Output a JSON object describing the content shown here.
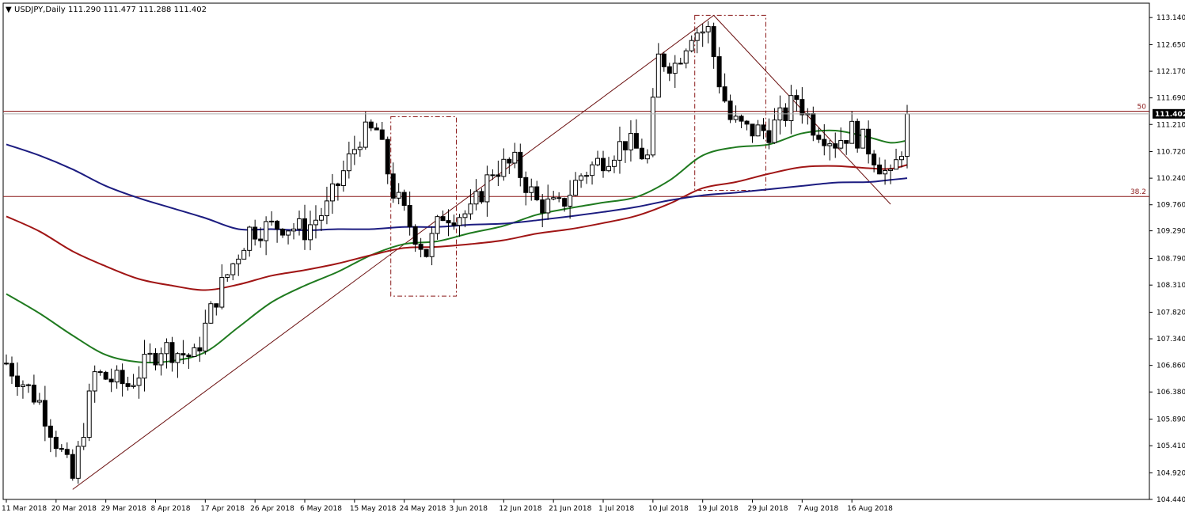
{
  "header": {
    "symbol": "USDJPY,Daily",
    "ohlc": "111.290 111.477 111.288 111.402",
    "menu_glyph": "▼"
  },
  "current_price": "111.402",
  "fib_levels": [
    {
      "label": "50",
      "value": 111.45
    },
    {
      "label": "38.2",
      "value": 109.91
    }
  ],
  "colors": {
    "bull": "#ffffff",
    "bear": "#000000",
    "ma_fast": "#1f7a1f",
    "ma_mid": "#a01515",
    "ma_slow": "#1c1c80",
    "fib_line": "#8b1a1a",
    "grid": "#c0c0c0"
  },
  "chart_data": {
    "type": "candlestick",
    "instrument": "USDJPY",
    "timeframe": "Daily",
    "ylim": [
      104.44,
      113.4
    ],
    "y_ticks": [
      "113.140",
      "112.650",
      "112.170",
      "111.690",
      "111.210",
      "110.720",
      "110.240",
      "109.760",
      "109.290",
      "108.790",
      "108.310",
      "107.820",
      "107.340",
      "106.860",
      "106.380",
      "105.890",
      "105.410",
      "104.920",
      "104.440"
    ],
    "x_labels": [
      "11 Mar 2018",
      "20 Mar 2018",
      "29 Mar 2018",
      "8 Apr 2018",
      "17 Apr 2018",
      "26 Apr 2018",
      "6 May 2018",
      "15 May 2018",
      "24 May 2018",
      "3 Jun 2018",
      "12 Jun 2018",
      "21 Jun 2018",
      "1 Jul 2018",
      "10 Jul 2018",
      "19 Jul 2018",
      "29 Jul 2018",
      "7 Aug 2018",
      "16 Aug 2018"
    ],
    "x_label_index": [
      0,
      9,
      18,
      27,
      36,
      45,
      54,
      63,
      72,
      81,
      90,
      99,
      108,
      117,
      126,
      135,
      144,
      153
    ],
    "bar_count": 164,
    "pivots": [
      {
        "index": 12,
        "low": 104.62
      },
      {
        "index": 72,
        "high": 110.51
      },
      {
        "index": 81,
        "low": 108.11
      },
      {
        "index": 128,
        "high": 113.18
      },
      {
        "index": 160,
        "low": 109.77
      },
      {
        "index": 163,
        "close": 111.4
      }
    ],
    "ohlc_range_boxes": [
      {
        "from_index": 70,
        "to_index": 81,
        "high": 111.35,
        "low": 108.11
      },
      {
        "from_index": 125,
        "to_index": 137,
        "high": 113.18,
        "low": 110.02
      }
    ],
    "trendlines": [
      {
        "from": {
          "index": 12,
          "value": 104.62
        },
        "to": {
          "index": 128,
          "value": 113.18
        }
      },
      {
        "from": {
          "index": 128,
          "value": 113.18
        },
        "to": {
          "index": 160,
          "value": 109.77
        }
      }
    ],
    "moving_averages": [
      {
        "color_key": "ma_fast",
        "points": [
          [
            0,
            108.15
          ],
          [
            6,
            107.8
          ],
          [
            12,
            107.4
          ],
          [
            18,
            107.05
          ],
          [
            24,
            106.92
          ],
          [
            30,
            106.94
          ],
          [
            36,
            107.1
          ],
          [
            42,
            107.55
          ],
          [
            48,
            108.0
          ],
          [
            54,
            108.3
          ],
          [
            60,
            108.55
          ],
          [
            66,
            108.85
          ],
          [
            72,
            109.05
          ],
          [
            78,
            109.1
          ],
          [
            84,
            109.25
          ],
          [
            90,
            109.38
          ],
          [
            96,
            109.58
          ],
          [
            102,
            109.7
          ],
          [
            108,
            109.8
          ],
          [
            114,
            109.9
          ],
          [
            120,
            110.2
          ],
          [
            126,
            110.65
          ],
          [
            132,
            110.8
          ],
          [
            138,
            110.85
          ],
          [
            144,
            111.05
          ],
          [
            150,
            111.1
          ],
          [
            156,
            110.98
          ],
          [
            160,
            110.88
          ],
          [
            163,
            110.92
          ]
        ]
      },
      {
        "color_key": "ma_mid",
        "points": [
          [
            0,
            109.55
          ],
          [
            6,
            109.28
          ],
          [
            12,
            108.92
          ],
          [
            18,
            108.65
          ],
          [
            24,
            108.42
          ],
          [
            30,
            108.3
          ],
          [
            36,
            108.22
          ],
          [
            42,
            108.32
          ],
          [
            48,
            108.48
          ],
          [
            54,
            108.58
          ],
          [
            60,
            108.7
          ],
          [
            66,
            108.85
          ],
          [
            72,
            108.98
          ],
          [
            78,
            109.0
          ],
          [
            84,
            109.05
          ],
          [
            90,
            109.12
          ],
          [
            96,
            109.24
          ],
          [
            102,
            109.32
          ],
          [
            108,
            109.43
          ],
          [
            114,
            109.56
          ],
          [
            120,
            109.78
          ],
          [
            126,
            110.06
          ],
          [
            132,
            110.17
          ],
          [
            138,
            110.32
          ],
          [
            144,
            110.44
          ],
          [
            150,
            110.46
          ],
          [
            156,
            110.42
          ],
          [
            160,
            110.41
          ],
          [
            163,
            110.48
          ]
        ]
      },
      {
        "color_key": "ma_slow",
        "points": [
          [
            0,
            110.85
          ],
          [
            6,
            110.65
          ],
          [
            12,
            110.4
          ],
          [
            18,
            110.1
          ],
          [
            24,
            109.88
          ],
          [
            30,
            109.7
          ],
          [
            36,
            109.52
          ],
          [
            42,
            109.32
          ],
          [
            48,
            109.32
          ],
          [
            54,
            109.3
          ],
          [
            60,
            109.32
          ],
          [
            66,
            109.32
          ],
          [
            72,
            109.36
          ],
          [
            78,
            109.36
          ],
          [
            84,
            109.4
          ],
          [
            90,
            109.42
          ],
          [
            96,
            109.48
          ],
          [
            102,
            109.55
          ],
          [
            108,
            109.63
          ],
          [
            114,
            109.72
          ],
          [
            120,
            109.84
          ],
          [
            126,
            109.93
          ],
          [
            132,
            109.98
          ],
          [
            138,
            110.04
          ],
          [
            144,
            110.1
          ],
          [
            150,
            110.16
          ],
          [
            156,
            110.17
          ],
          [
            160,
            110.21
          ],
          [
            163,
            110.24
          ]
        ]
      }
    ]
  }
}
